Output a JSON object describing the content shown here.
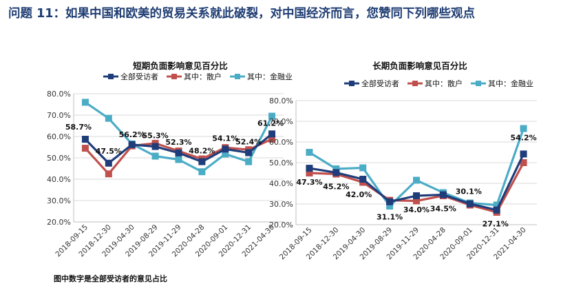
{
  "page": {
    "title": "问题 11：如果中国和欧美的贸易关系就此破裂，对中国经济而言，您赞同下列哪些观点",
    "footnote": "图中数字是全部受访者的意见占比"
  },
  "colors": {
    "all": "#1f3d7a",
    "retail": "#c0504d",
    "finance": "#4bacc6",
    "grid": "#d9d9d9",
    "axis": "#bfbfbf"
  },
  "chart_data": [
    {
      "type": "line",
      "title": "短期负面影响意见百分比",
      "categories": [
        "2018-09-15",
        "2018-12-30",
        "2019-04-30",
        "2019-08-29",
        "2019-11-29",
        "2020-04-28",
        "2020-09-01",
        "2020-12-31",
        "2021-04-30"
      ],
      "ylim": [
        20,
        80
      ],
      "yticks": [
        "20.0%",
        "30.0%",
        "40.0%",
        "50.0%",
        "60.0%",
        "70.0%",
        "80.0%"
      ],
      "grid": true,
      "legend_position": "top",
      "series": [
        {
          "name": "全部受访者",
          "key": "all",
          "values": [
            58.7,
            47.5,
            56.2,
            55.3,
            52.3,
            48.2,
            54.1,
            52.4,
            61.2
          ]
        },
        {
          "name": "其中：散户",
          "key": "retail",
          "values": [
            54.5,
            42.5,
            55.6,
            56.8,
            53.2,
            49.5,
            54.8,
            53.8,
            58.8
          ]
        },
        {
          "name": "其中：金融业",
          "key": "finance",
          "values": [
            76.0,
            68.5,
            56.5,
            50.8,
            49.2,
            43.5,
            51.8,
            48.2,
            69.5
          ]
        }
      ],
      "data_labels": [
        "58.7%",
        "47.5%",
        "56.2%",
        "55.3%",
        "52.3%",
        "48.2%",
        "54.1%",
        "52.4%",
        "61.2%"
      ]
    },
    {
      "type": "line",
      "title": "长期负面影响意见百分比",
      "categories": [
        "2018-09-15",
        "2018-12-30",
        "2019-04-30",
        "2019-08-29",
        "2019-11-29",
        "2020-04-28",
        "2020-09-01",
        "2020-12-31",
        "2021-04-30"
      ],
      "ylim": [
        20,
        80
      ],
      "yticks": [
        "20.0%",
        "30.0%",
        "40.0%",
        "50.0%",
        "60.0%",
        "70.0%",
        "80.0%"
      ],
      "grid": true,
      "legend_position": "top",
      "series": [
        {
          "name": "全部受访者",
          "key": "all",
          "values": [
            47.3,
            45.2,
            42.0,
            31.1,
            34.0,
            34.5,
            30.1,
            27.1,
            54.2
          ]
        },
        {
          "name": "其中：散户",
          "key": "retail",
          "values": [
            45.0,
            44.5,
            40.5,
            31.8,
            31.5,
            34.0,
            29.5,
            26.0,
            50.0
          ]
        },
        {
          "name": "其中：金融业",
          "key": "finance",
          "values": [
            55.0,
            47.0,
            47.5,
            29.0,
            41.5,
            35.5,
            30.5,
            29.5,
            66.5
          ]
        }
      ],
      "data_labels": [
        "47.3%",
        "45.2%",
        "42.0%",
        "31.1%",
        "34.0%",
        "34.5%",
        "30.1%",
        "27.1%",
        "54.2%"
      ]
    }
  ]
}
